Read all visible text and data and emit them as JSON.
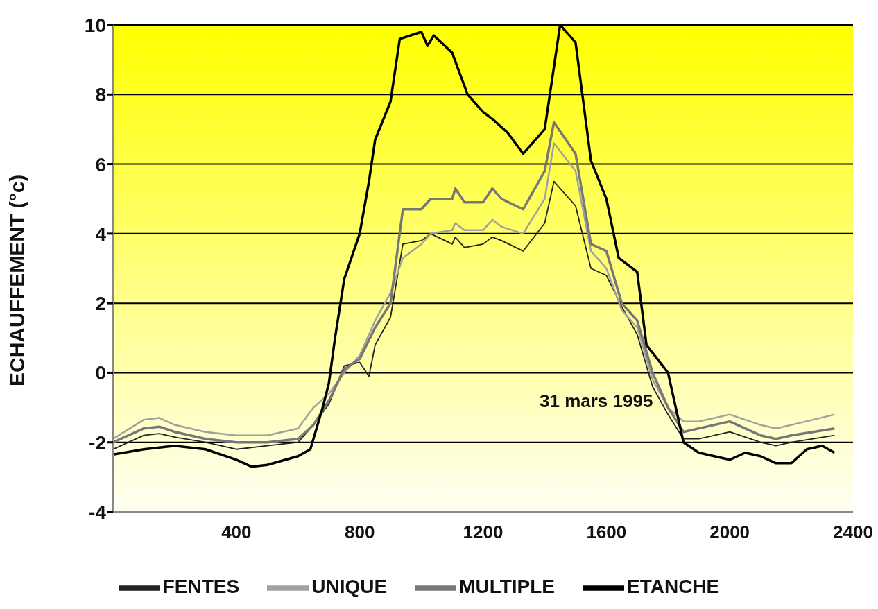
{
  "chart_data": {
    "type": "line",
    "ylabel": "ECHAUFFEMENT (°c)",
    "annotations": [
      "31 mars 1995"
    ],
    "xlim": [
      0,
      2400
    ],
    "xticks": [
      400,
      800,
      1200,
      1600,
      2000,
      2400
    ],
    "ylim": [
      -4,
      10
    ],
    "yticks": [
      -4,
      -2,
      0,
      2,
      4,
      6,
      8,
      10
    ],
    "grid": "y",
    "legend": "bottom",
    "marker": "none",
    "line_style": "solid",
    "series": [
      {
        "name": "FENTES",
        "color": "#222222",
        "x": [
          0,
          100,
          150,
          200,
          300,
          400,
          500,
          600,
          650,
          700,
          750,
          800,
          830,
          850,
          900,
          940,
          1000,
          1030,
          1100,
          1110,
          1140,
          1200,
          1230,
          1260,
          1330,
          1400,
          1430,
          1500,
          1550,
          1600,
          1650,
          1700,
          1750,
          1800,
          1850,
          1900,
          2000,
          2100,
          2150,
          2200,
          2340
        ],
        "values": [
          -2.2,
          -1.8,
          -1.75,
          -1.85,
          -2.0,
          -2.2,
          -2.1,
          -2.0,
          -1.5,
          -0.9,
          0.2,
          0.3,
          -0.1,
          0.8,
          1.6,
          3.7,
          3.8,
          4.0,
          3.7,
          3.9,
          3.6,
          3.7,
          3.9,
          3.8,
          3.5,
          4.3,
          5.5,
          4.8,
          3.0,
          2.8,
          1.9,
          1.1,
          -0.4,
          -1.2,
          -1.9,
          -1.9,
          -1.7,
          -2.0,
          -2.1,
          -2.0,
          -1.8
        ]
      },
      {
        "name": "UNIQUE",
        "color": "#a0a0a0",
        "x": [
          0,
          100,
          150,
          200,
          300,
          400,
          500,
          600,
          650,
          700,
          750,
          800,
          850,
          900,
          940,
          1000,
          1030,
          1100,
          1110,
          1140,
          1200,
          1230,
          1260,
          1330,
          1400,
          1430,
          1500,
          1550,
          1600,
          1650,
          1700,
          1750,
          1800,
          1850,
          1900,
          2000,
          2100,
          2150,
          2200,
          2340
        ],
        "values": [
          -1.9,
          -1.35,
          -1.3,
          -1.5,
          -1.7,
          -1.8,
          -1.8,
          -1.6,
          -1.0,
          -0.6,
          0.0,
          0.5,
          1.5,
          2.3,
          3.3,
          3.7,
          4.0,
          4.1,
          4.3,
          4.1,
          4.1,
          4.4,
          4.2,
          4.0,
          5.0,
          6.6,
          5.8,
          3.5,
          3.0,
          1.8,
          1.3,
          -0.2,
          -1.0,
          -1.4,
          -1.4,
          -1.2,
          -1.5,
          -1.6,
          -1.5,
          -1.2
        ]
      },
      {
        "name": "MULTIPLE",
        "color": "#777777",
        "x": [
          0,
          100,
          150,
          200,
          300,
          400,
          500,
          600,
          650,
          700,
          750,
          800,
          850,
          900,
          940,
          1000,
          1030,
          1100,
          1110,
          1140,
          1200,
          1230,
          1260,
          1330,
          1400,
          1430,
          1500,
          1550,
          1600,
          1650,
          1700,
          1750,
          1800,
          1850,
          1900,
          2000,
          2100,
          2150,
          2200,
          2340
        ],
        "values": [
          -2.0,
          -1.6,
          -1.55,
          -1.7,
          -1.9,
          -2.0,
          -2.0,
          -1.9,
          -1.5,
          -0.8,
          0.1,
          0.4,
          1.3,
          2.0,
          4.7,
          4.7,
          5.0,
          5.0,
          5.3,
          4.9,
          4.9,
          5.3,
          5.0,
          4.7,
          5.8,
          7.2,
          6.3,
          3.7,
          3.5,
          2.0,
          1.5,
          0.0,
          -1.0,
          -1.7,
          -1.6,
          -1.4,
          -1.8,
          -1.9,
          -1.8,
          -1.6
        ]
      },
      {
        "name": "ETANCHE",
        "color": "#000000",
        "x": [
          0,
          100,
          200,
          300,
          400,
          450,
          500,
          600,
          640,
          680,
          700,
          720,
          750,
          800,
          830,
          850,
          900,
          930,
          1000,
          1020,
          1040,
          1100,
          1150,
          1200,
          1230,
          1280,
          1330,
          1400,
          1450,
          1500,
          1550,
          1600,
          1640,
          1700,
          1730,
          1800,
          1850,
          1900,
          2000,
          2050,
          2100,
          2150,
          2200,
          2250,
          2300,
          2340
        ],
        "values": [
          -2.35,
          -2.2,
          -2.1,
          -2.2,
          -2.5,
          -2.7,
          -2.65,
          -2.4,
          -2.2,
          -1.0,
          -0.3,
          1.0,
          2.7,
          4.0,
          5.5,
          6.7,
          7.8,
          9.6,
          9.8,
          9.4,
          9.7,
          9.2,
          8.0,
          7.5,
          7.3,
          6.9,
          6.3,
          7.0,
          10.0,
          9.5,
          6.1,
          5.0,
          3.3,
          2.9,
          0.8,
          0.0,
          -2.0,
          -2.3,
          -2.5,
          -2.3,
          -2.4,
          -2.6,
          -2.6,
          -2.2,
          -2.1,
          -2.3
        ]
      }
    ]
  }
}
